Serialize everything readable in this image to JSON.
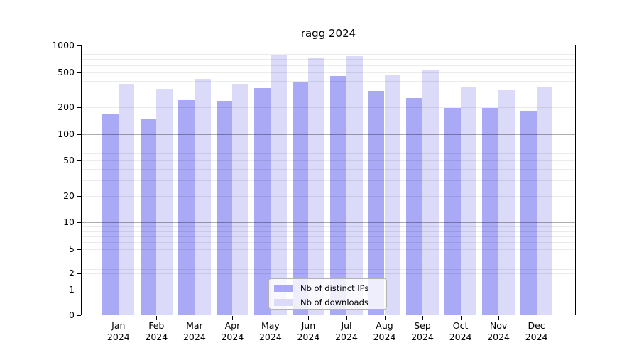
{
  "title": "ragg 2024",
  "chart_data": {
    "type": "bar",
    "title": "ragg 2024",
    "categories": [
      "Jan",
      "Feb",
      "Mar",
      "Apr",
      "May",
      "Jun",
      "Jul",
      "Aug",
      "Sep",
      "Oct",
      "Nov",
      "Dec"
    ],
    "year_label": "2024",
    "series": [
      {
        "name": "Nb of distinct IPs",
        "color": "#a9a9f5",
        "values": [
          170,
          148,
          240,
          235,
          330,
          390,
          455,
          305,
          255,
          196,
          197,
          180
        ]
      },
      {
        "name": "Nb of downloads",
        "color": "#dbdbf9",
        "values": [
          360,
          325,
          420,
          360,
          775,
          720,
          760,
          465,
          520,
          345,
          310,
          345
        ]
      }
    ],
    "y_axis": {
      "scale": "log",
      "tick_labels": [
        "0",
        "1",
        "2",
        "5",
        "10",
        "20",
        "50",
        "100",
        "200",
        "500",
        "1000"
      ],
      "ticks": [
        0,
        1,
        2,
        5,
        10,
        20,
        50,
        100,
        200,
        500,
        1000
      ],
      "ylim": [
        0,
        1000
      ]
    },
    "x_axis": {
      "label_format": "month + year, two lines"
    },
    "legend": {
      "position": "bottom-center",
      "entries": [
        "Nb of distinct IPs",
        "Nb of downloads"
      ]
    },
    "grid": {
      "horizontal": true,
      "minor_log_lines": true
    }
  }
}
